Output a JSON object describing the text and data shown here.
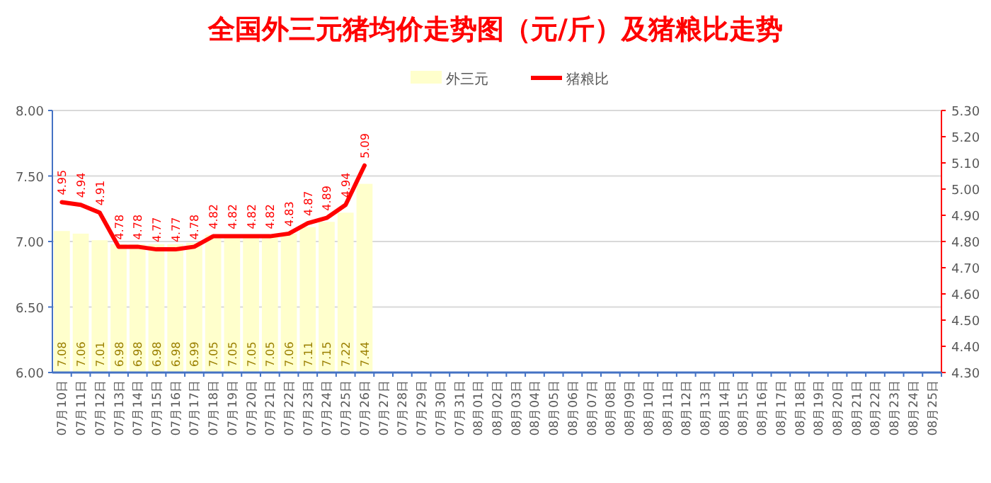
{
  "chart_data": {
    "type": "bar",
    "title": "全国外三元猪均价走势图（元/斤）及猪粮比走势",
    "categories": [
      "07月10日",
      "07月11日",
      "07月12日",
      "07月13日",
      "07月14日",
      "07月15日",
      "07月16日",
      "07月17日",
      "07月18日",
      "07月19日",
      "07月20日",
      "07月21日",
      "07月22日",
      "07月23日",
      "07月24日",
      "07月25日",
      "07月26日",
      "07月27日",
      "07月28日",
      "07月29日",
      "07月30日",
      "07月31日",
      "08月01日",
      "08月02日",
      "08月03日",
      "08月04日",
      "08月05日",
      "08月06日",
      "08月07日",
      "08月08日",
      "08月09日",
      "08月10日",
      "08月11日",
      "08月12日",
      "08月13日",
      "08月14日",
      "08月15日",
      "08月16日",
      "08月17日",
      "08月18日",
      "08月19日",
      "08月20日",
      "08月21日",
      "08月22日",
      "08月23日",
      "08月24日",
      "08月25日"
    ],
    "series": [
      {
        "name": "外三元",
        "color": "#ffffcc",
        "values": [
          7.08,
          7.06,
          7.01,
          6.98,
          6.98,
          6.98,
          6.98,
          6.99,
          7.05,
          7.05,
          7.05,
          7.05,
          7.06,
          7.11,
          7.15,
          7.22,
          7.44,
          null,
          null,
          null,
          null,
          null,
          null,
          null,
          null,
          null,
          null,
          null,
          null,
          null,
          null,
          null,
          null,
          null,
          null,
          null,
          null,
          null,
          null,
          null,
          null,
          null,
          null,
          null,
          null,
          null,
          null
        ]
      },
      {
        "name": "猪粮比",
        "type": "line",
        "axis": "y2",
        "color": "#ff0000",
        "values": [
          4.95,
          4.94,
          4.91,
          4.78,
          4.78,
          4.77,
          4.77,
          4.78,
          4.82,
          4.82,
          4.82,
          4.82,
          4.83,
          4.87,
          4.89,
          4.94,
          5.09,
          null,
          null,
          null,
          null,
          null,
          null,
          null,
          null,
          null,
          null,
          null,
          null,
          null,
          null,
          null,
          null,
          null,
          null,
          null,
          null,
          null,
          null,
          null,
          null,
          null,
          null,
          null,
          null,
          null,
          null
        ]
      }
    ],
    "ylim": [
      6,
      8
    ],
    "yticks": [
      {
        "value": 6,
        "label": "6.00"
      },
      {
        "value": 6.5,
        "label": "6.50"
      },
      {
        "value": 7,
        "label": "7.00"
      },
      {
        "value": 7.5,
        "label": "7.50"
      },
      {
        "value": 8,
        "label": "8.00"
      }
    ],
    "y2lim": [
      4.3,
      5.3
    ],
    "y2ticks": [
      {
        "value": 4.3,
        "label": "4.30"
      },
      {
        "value": 4.4,
        "label": "4.40"
      },
      {
        "value": 4.5,
        "label": "4.50"
      },
      {
        "value": 4.6,
        "label": "4.60"
      },
      {
        "value": 4.7,
        "label": "4.70"
      },
      {
        "value": 4.8,
        "label": "4.80"
      },
      {
        "value": 4.9,
        "label": "4.90"
      },
      {
        "value": 5.0,
        "label": "5.00"
      },
      {
        "value": 5.1,
        "label": "5.10"
      },
      {
        "value": 5.2,
        "label": "5.20"
      },
      {
        "value": 5.3,
        "label": "5.30"
      }
    ],
    "data_labels": true,
    "grid": "y",
    "legend": "top"
  }
}
